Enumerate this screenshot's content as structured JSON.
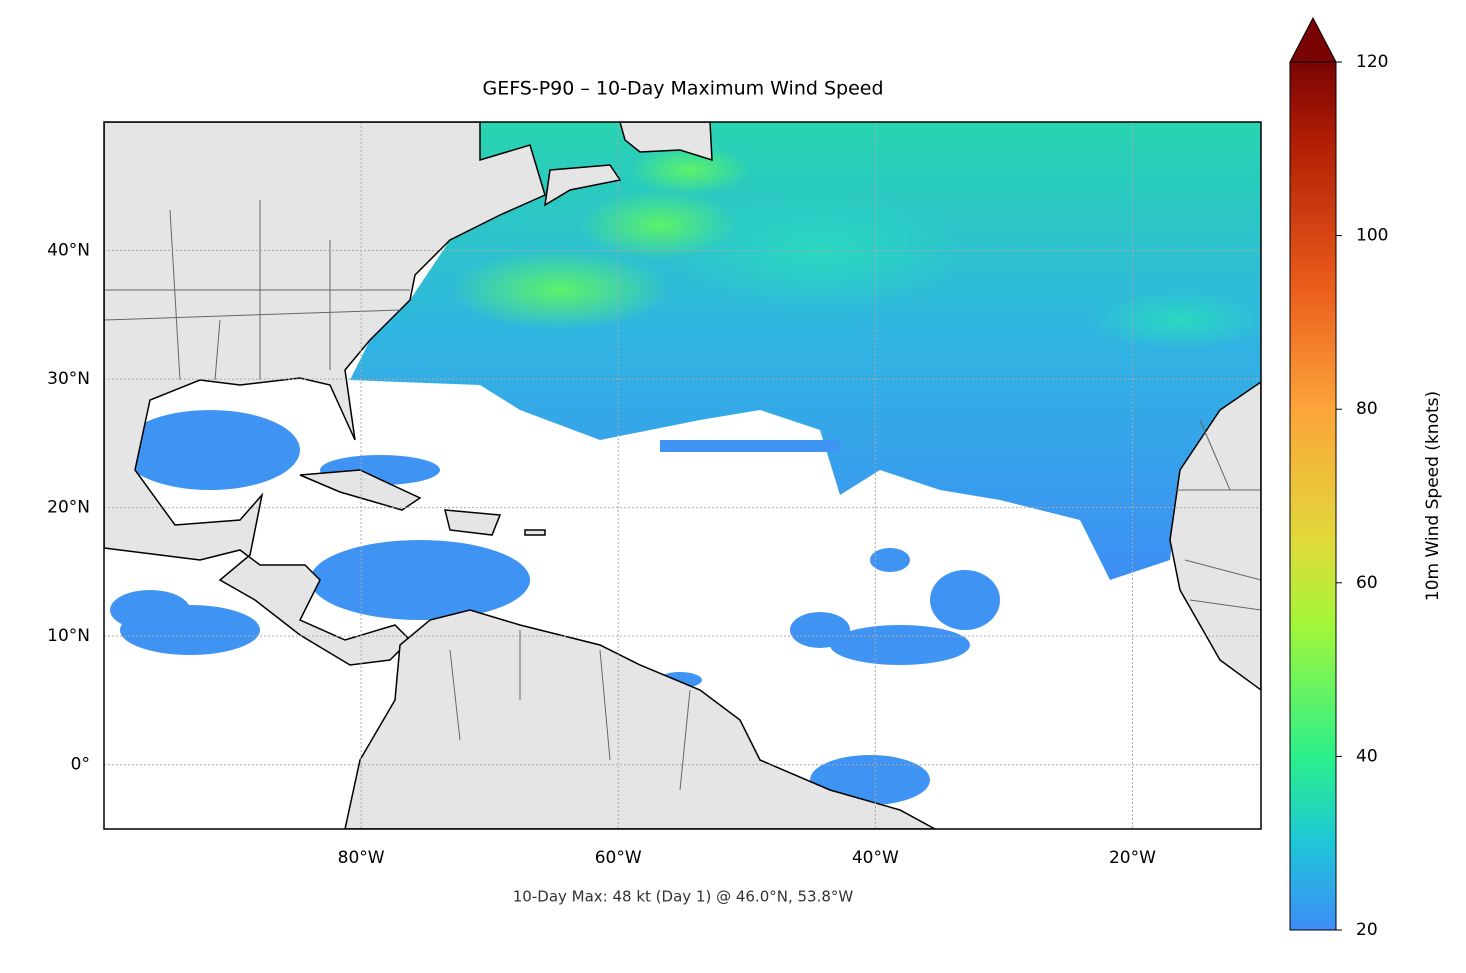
{
  "chart_data": {
    "type": "map",
    "title": "GEFS-P90 – 10-Day Maximum Wind Speed",
    "annotation": "10-Day Max: 48 kt (Day 1) @ 46.0°N, 53.8°W",
    "xlim": [
      -100,
      -10
    ],
    "ylim": [
      -5,
      50
    ],
    "xticks": [
      {
        "value": -80,
        "label": "80°W"
      },
      {
        "value": -60,
        "label": "60°W"
      },
      {
        "value": -40,
        "label": "40°W"
      },
      {
        "value": -20,
        "label": "20°W"
      }
    ],
    "yticks": [
      {
        "value": 0,
        "label": "0°"
      },
      {
        "value": 10,
        "label": "10°N"
      },
      {
        "value": 20,
        "label": "20°N"
      },
      {
        "value": 30,
        "label": "30°N"
      },
      {
        "value": 40,
        "label": "40°N"
      }
    ],
    "grid": true,
    "colorbar": {
      "label": "10m Wind Speed (knots)",
      "lim": [
        20,
        120
      ],
      "ticks": [
        20,
        40,
        60,
        80,
        100,
        120
      ],
      "extend": "max"
    }
  }
}
